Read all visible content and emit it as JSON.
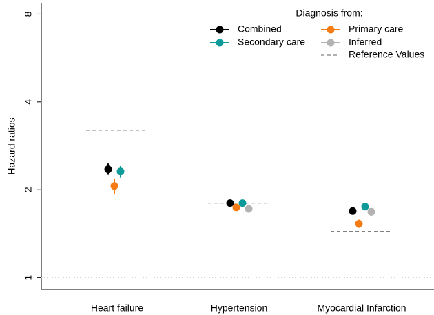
{
  "chart_data": {
    "type": "dot-errorbar",
    "y_label": "Hazard ratios",
    "log_y": true,
    "ylim": [
      0.91,
      8.7
    ],
    "yticks": [
      1,
      2,
      4,
      8
    ],
    "baseline": 1,
    "categories": [
      "Heart failure",
      "Hypertension",
      "Myocardial Infarction"
    ],
    "legend_title": "Diagnosis from:",
    "series": [
      {
        "name": "Combined",
        "color": "#000000",
        "values": [
          2.35,
          1.8,
          1.69
        ],
        "lower": [
          2.25,
          1.78,
          1.65
        ],
        "upper": [
          2.46,
          1.82,
          1.73
        ]
      },
      {
        "name": "Primary care",
        "color": "#f57c14",
        "values": [
          2.06,
          1.74,
          1.53
        ],
        "lower": [
          1.93,
          1.71,
          1.48
        ],
        "upper": [
          2.18,
          1.77,
          1.58
        ]
      },
      {
        "name": "Secondary care",
        "color": "#0f9a9a",
        "values": [
          2.31,
          1.8,
          1.75
        ],
        "lower": [
          2.2,
          1.77,
          1.71
        ],
        "upper": [
          2.41,
          1.83,
          1.8
        ]
      },
      {
        "name": "Inferred",
        "color": "#b3b3b3",
        "values": [
          null,
          1.72,
          1.68
        ],
        "lower": [
          null,
          1.69,
          1.63
        ],
        "upper": [
          null,
          1.75,
          1.73
        ]
      }
    ],
    "reference": {
      "name": "Reference Values",
      "color": "#808080",
      "values": [
        3.2,
        1.8,
        1.44
      ]
    }
  }
}
